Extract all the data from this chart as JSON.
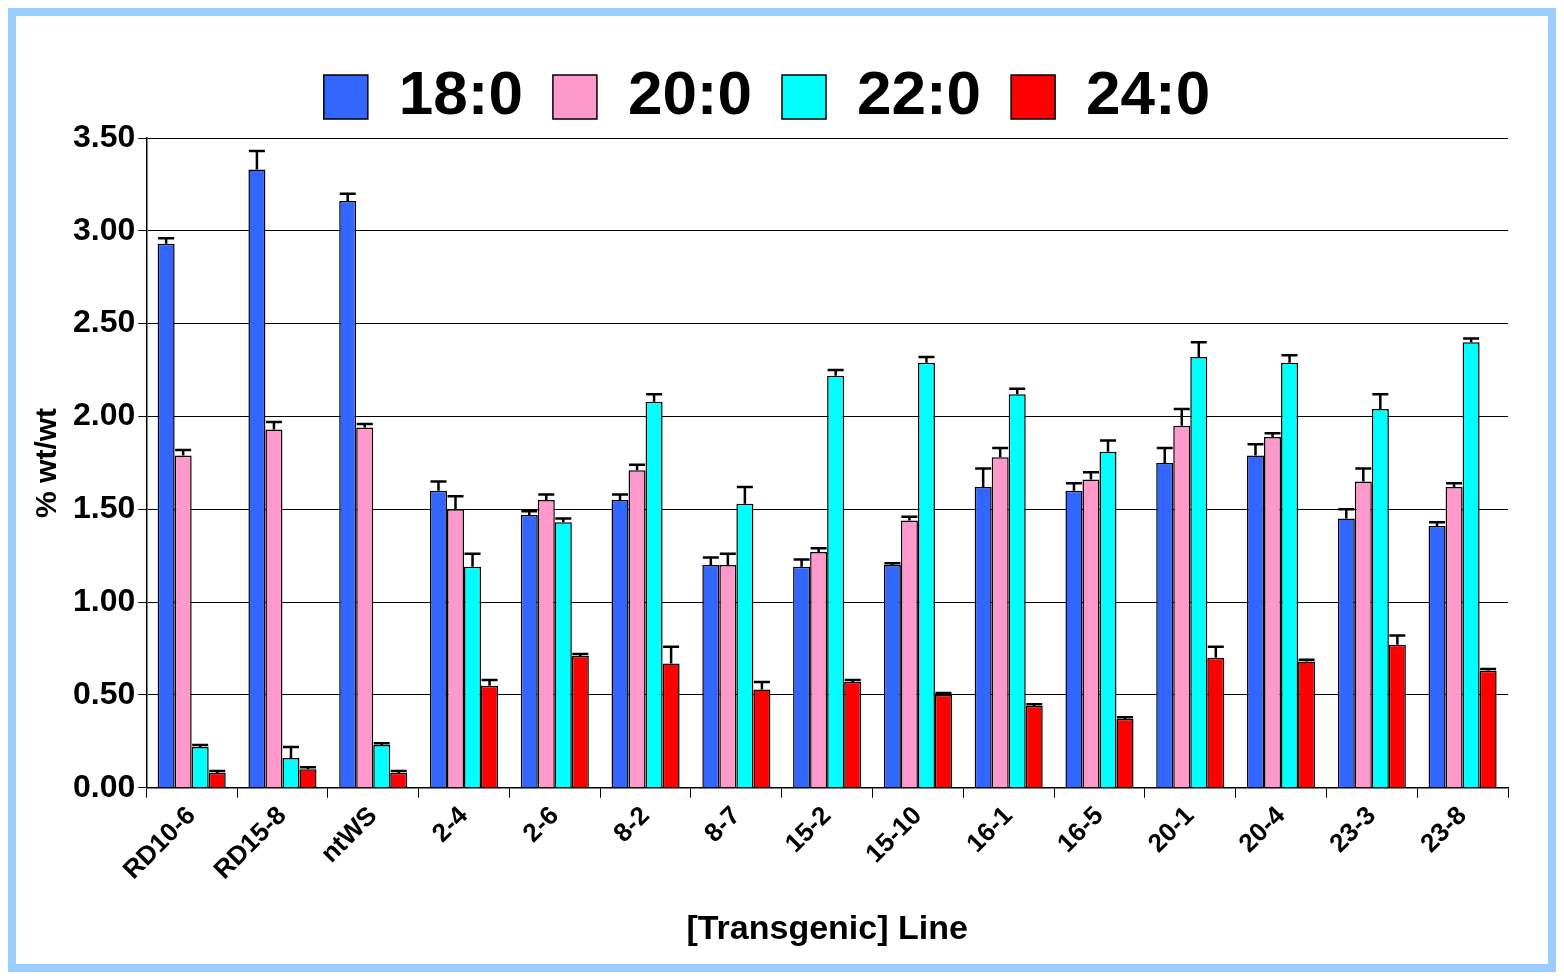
{
  "chart_data": {
    "type": "bar",
    "xlabel": "[Transgenic] Line",
    "ylabel": "% wt/wt",
    "categories": [
      "RD10-6",
      "RD15-8",
      "ntWS",
      "2-4",
      "2-6",
      "8-2",
      "8-7",
      "15-2",
      "15-10",
      "16-1",
      "16-5",
      "20-1",
      "20-4",
      "23-3",
      "23-8"
    ],
    "series": [
      {
        "name": "18:0",
        "color": "#3366ff",
        "values": [
          2.93,
          3.33,
          3.16,
          1.6,
          1.47,
          1.55,
          1.2,
          1.19,
          1.2,
          1.62,
          1.6,
          1.75,
          1.79,
          1.45,
          1.41
        ],
        "errors": [
          [
            2.93,
            2.96
          ],
          [
            3.33,
            3.43
          ],
          [
            3.16,
            3.2
          ],
          [
            1.6,
            1.65
          ],
          [
            1.47,
            1.49
          ],
          [
            1.55,
            1.58
          ],
          [
            1.2,
            1.24
          ],
          [
            1.19,
            1.23
          ],
          [
            1.2,
            1.21
          ],
          [
            1.62,
            1.72
          ],
          [
            1.6,
            1.64
          ],
          [
            1.75,
            1.83
          ],
          [
            1.79,
            1.85
          ],
          [
            1.45,
            1.5
          ],
          [
            1.41,
            1.43
          ]
        ]
      },
      {
        "name": "20:0",
        "color": "#ff99cc",
        "values": [
          1.79,
          1.93,
          1.94,
          1.5,
          1.55,
          1.71,
          1.2,
          1.27,
          1.44,
          1.78,
          1.66,
          1.95,
          1.89,
          1.65,
          1.62
        ],
        "errors": [
          [
            1.79,
            1.82
          ],
          [
            1.93,
            1.97
          ],
          [
            1.94,
            1.96
          ],
          [
            1.5,
            1.57
          ],
          [
            1.55,
            1.58
          ],
          [
            1.71,
            1.74
          ],
          [
            1.2,
            1.26
          ],
          [
            1.27,
            1.29
          ],
          [
            1.44,
            1.46
          ],
          [
            1.78,
            1.83
          ],
          [
            1.66,
            1.7
          ],
          [
            1.95,
            2.04
          ],
          [
            1.89,
            1.91
          ],
          [
            1.65,
            1.72
          ],
          [
            1.62,
            1.64
          ]
        ]
      },
      {
        "name": "22:0",
        "color": "#00ffff",
        "values": [
          0.22,
          0.16,
          0.23,
          1.19,
          1.43,
          2.08,
          1.53,
          2.22,
          2.29,
          2.12,
          1.81,
          2.32,
          2.29,
          2.04,
          2.4
        ],
        "errors": [
          [
            0.22,
            0.23
          ],
          [
            0.16,
            0.22
          ],
          [
            0.23,
            0.24
          ],
          [
            1.19,
            1.26
          ],
          [
            1.43,
            1.45
          ],
          [
            2.08,
            2.12
          ],
          [
            1.53,
            1.62
          ],
          [
            2.22,
            2.25
          ],
          [
            2.29,
            2.32
          ],
          [
            2.12,
            2.15
          ],
          [
            1.81,
            1.87
          ],
          [
            2.32,
            2.4
          ],
          [
            2.29,
            2.33
          ],
          [
            2.04,
            2.12
          ],
          [
            2.4,
            2.42
          ]
        ]
      },
      {
        "name": "24:0",
        "color": "#ff0000",
        "values": [
          0.08,
          0.1,
          0.08,
          0.55,
          0.71,
          0.67,
          0.53,
          0.57,
          0.5,
          0.44,
          0.37,
          0.7,
          0.68,
          0.77,
          0.63
        ],
        "errors": [
          [
            0.08,
            0.09
          ],
          [
            0.1,
            0.11
          ],
          [
            0.08,
            0.09
          ],
          [
            0.55,
            0.58
          ],
          [
            0.71,
            0.72
          ],
          [
            0.67,
            0.76
          ],
          [
            0.53,
            0.57
          ],
          [
            0.57,
            0.58
          ],
          [
            0.5,
            0.51
          ],
          [
            0.44,
            0.45
          ],
          [
            0.37,
            0.38
          ],
          [
            0.7,
            0.76
          ],
          [
            0.68,
            0.69
          ],
          [
            0.77,
            0.82
          ],
          [
            0.63,
            0.64
          ]
        ]
      }
    ],
    "ylim": [
      0,
      3.5
    ],
    "yticks": [
      {
        "value": 0,
        "label": "0.00"
      },
      {
        "value": 0.5,
        "label": "0.50"
      },
      {
        "value": 1,
        "label": "1.00"
      },
      {
        "value": 1.5,
        "label": "1.50"
      },
      {
        "value": 2,
        "label": "2.00"
      },
      {
        "value": 2.5,
        "label": "2.50"
      },
      {
        "value": 3,
        "label": "3.00"
      },
      {
        "value": 3.5,
        "label": "3.50"
      }
    ],
    "grid": "y",
    "legend": "top"
  }
}
